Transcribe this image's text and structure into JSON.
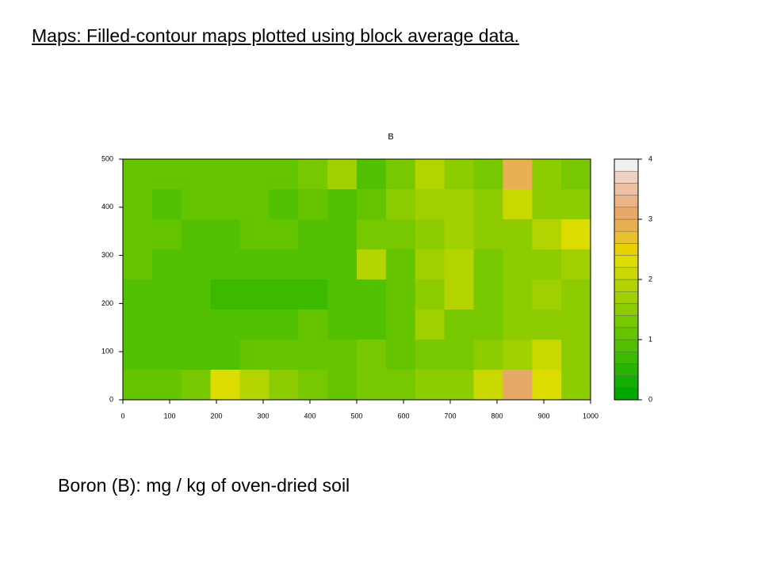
{
  "slide_title": "Maps: Filled-contour maps plotted using block average data.",
  "caption": "Boron (B): mg / kg of oven-dried soil",
  "chart_data": {
    "type": "contour",
    "title": "B",
    "xlim": [
      0,
      1000
    ],
    "ylim": [
      0,
      500
    ],
    "xticks": [
      0,
      100,
      200,
      300,
      400,
      500,
      600,
      700,
      800,
      900,
      1000
    ],
    "yticks": [
      0,
      100,
      200,
      300,
      400,
      500
    ],
    "zlim": [
      0,
      4
    ],
    "zticks": [
      0,
      1,
      2,
      3,
      4
    ],
    "level_colors": [
      "#00a800",
      "#14ae00",
      "#28b400",
      "#3cba00",
      "#50c000",
      "#64c400",
      "#78c800",
      "#8ccc00",
      "#a0d000",
      "#b4d400",
      "#c8d800",
      "#dcdc00",
      "#e6d000",
      "#e8c030",
      "#e8b050",
      "#e8a868",
      "#eab488",
      "#ecc0a0",
      "#f0d0c0",
      "#f0f0f0"
    ],
    "z": [
      [
        1.1,
        1.0,
        1.0,
        1.1,
        1.0,
        1.0,
        1.3,
        1.6,
        0.9,
        1.2,
        1.8,
        1.4,
        1.3,
        2.8,
        1.5,
        1.3
      ],
      [
        1.0,
        0.9,
        1.0,
        1.0,
        1.0,
        0.9,
        1.0,
        0.9,
        1.1,
        1.5,
        1.6,
        1.7,
        1.4,
        2.0,
        1.4,
        1.5
      ],
      [
        1.0,
        1.0,
        0.9,
        0.9,
        1.0,
        1.0,
        0.9,
        0.8,
        1.2,
        1.3,
        1.5,
        1.6,
        1.4,
        1.5,
        1.8,
        2.2
      ],
      [
        1.0,
        0.9,
        0.8,
        0.8,
        0.8,
        0.8,
        0.8,
        0.9,
        1.8,
        1.1,
        1.6,
        1.9,
        1.3,
        1.4,
        1.5,
        1.7
      ],
      [
        0.9,
        0.9,
        0.8,
        0.7,
        0.7,
        0.7,
        0.7,
        0.8,
        0.9,
        1.0,
        1.4,
        1.8,
        1.2,
        1.4,
        1.6,
        1.5
      ],
      [
        0.9,
        0.8,
        0.8,
        0.8,
        0.9,
        0.9,
        1.0,
        0.9,
        0.9,
        1.0,
        1.6,
        1.3,
        1.2,
        1.4,
        1.5,
        1.4
      ],
      [
        0.8,
        0.9,
        0.8,
        0.9,
        1.0,
        1.0,
        1.0,
        1.1,
        1.3,
        1.1,
        1.2,
        1.3,
        1.5,
        1.6,
        2.0,
        1.5
      ],
      [
        1.0,
        1.0,
        1.2,
        2.2,
        1.9,
        1.4,
        1.2,
        1.1,
        1.2,
        1.3,
        1.5,
        1.5,
        2.0,
        3.0,
        2.2,
        1.5
      ]
    ]
  }
}
